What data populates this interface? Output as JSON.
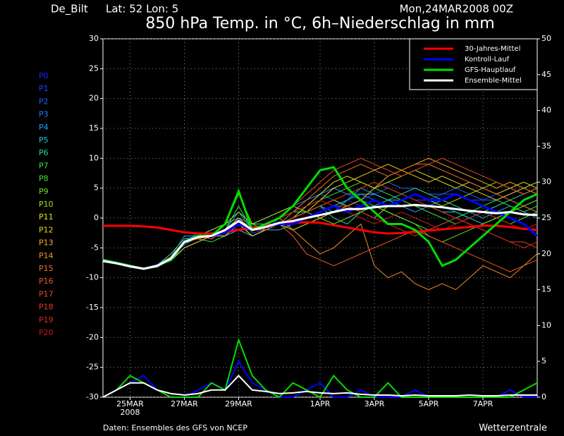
{
  "chart_data": {
    "type": "line",
    "title": "850 hPa Temp. in °C, 6h–Niederschlag in mm",
    "station": "De_Bilt",
    "location": "Lat: 52 Lon: 5",
    "run": "Mon,24MAR2008 00Z",
    "year_label": "2008",
    "source": "Daten: Ensembles des GFS von NCEP",
    "brand": "Wetterzentrale",
    "grid": true,
    "legend": "upper right",
    "x": [
      0,
      12,
      24,
      36,
      48,
      60,
      72,
      84,
      96,
      108,
      120,
      132,
      144,
      156,
      168,
      180,
      192,
      204,
      216,
      228,
      240,
      252,
      264,
      276,
      288,
      300,
      312,
      324,
      336,
      348,
      360,
      372,
      384
    ],
    "xlim": [
      0,
      384
    ],
    "xticks": [
      {
        "value": 24,
        "label": "25MAR"
      },
      {
        "value": 72,
        "label": "27MAR"
      },
      {
        "value": 120,
        "label": "29MAR"
      },
      {
        "value": 192,
        "label": "1APR"
      },
      {
        "value": 240,
        "label": "3APR"
      },
      {
        "value": 288,
        "label": "5APR"
      },
      {
        "value": 336,
        "label": "7APR"
      }
    ],
    "ylim": [
      -30,
      30
    ],
    "yticks": [
      -30,
      -25,
      -20,
      -15,
      -10,
      -5,
      0,
      5,
      10,
      15,
      20,
      25,
      30
    ],
    "y2lim": [
      0,
      50
    ],
    "y2ticks": [
      0,
      5,
      10,
      15,
      20,
      25,
      30,
      35,
      40,
      45,
      50
    ],
    "series": [
      {
        "name": "30-Jahres-Mittel",
        "color": "#ff0000",
        "values": [
          -1.3,
          -1.3,
          -1.3,
          -1.4,
          -1.6,
          -2,
          -2.4,
          -2.6,
          -2.6,
          -2.4,
          -2,
          -1.6,
          -1.3,
          -1,
          -0.8,
          -0.7,
          -0.8,
          -1.2,
          -1.6,
          -2,
          -2.4,
          -2.6,
          -2.5,
          -2.3,
          -2.1,
          -1.9,
          -1.7,
          -1.5,
          -1.3,
          -1.3,
          -1.5,
          -1.8,
          -2
        ]
      },
      {
        "name": "Kontroll-Lauf",
        "color": "#0000ff",
        "values": [
          -7,
          -7.5,
          -8,
          -8.5,
          -8,
          -7,
          -4,
          -3,
          -3,
          -2.5,
          -1,
          -2,
          -1.5,
          -1,
          -1,
          0,
          1,
          2,
          1,
          2,
          3,
          2,
          3,
          4,
          3,
          3,
          4,
          3,
          2,
          1,
          0,
          -1,
          -3
        ],
        "precip": [
          0,
          1,
          2,
          3,
          1,
          0,
          0,
          1,
          2,
          1,
          5,
          2,
          1,
          0,
          0,
          1,
          2,
          0,
          0,
          1,
          0,
          0,
          0,
          1,
          0,
          0,
          0,
          0,
          0,
          0,
          1,
          0,
          0
        ]
      },
      {
        "name": "GFS-Hauptlauf",
        "color": "#00dd00",
        "values": [
          -7,
          -7.5,
          -8,
          -8.5,
          -8,
          -7,
          -4,
          -3,
          -3,
          -1,
          4.5,
          -2,
          -1,
          0,
          2,
          5,
          8,
          8.5,
          5,
          3,
          1,
          -1,
          -1,
          -2,
          -4,
          -8,
          -7,
          -5,
          -3,
          -1,
          1,
          3,
          4
        ],
        "precip": [
          0,
          1,
          3,
          2,
          1,
          0,
          0,
          0,
          2,
          1,
          8,
          3,
          1,
          0,
          2,
          1,
          0,
          3,
          1,
          0,
          0,
          2,
          0,
          0,
          0,
          0,
          0,
          0,
          0,
          0,
          0,
          1,
          2
        ]
      },
      {
        "name": "Ensemble-Mittel",
        "color": "#ffffff",
        "values": [
          -7.2,
          -7.6,
          -8.1,
          -8.5,
          -8,
          -6.8,
          -4,
          -3.2,
          -3,
          -2,
          -0.5,
          -2,
          -1.5,
          -0.8,
          -0.5,
          0,
          0.5,
          1,
          1.5,
          1.5,
          1.8,
          2,
          2,
          2.2,
          2,
          1.8,
          1.5,
          1.2,
          1,
          0.8,
          1,
          0.6,
          0.5
        ],
        "precip": [
          0,
          1,
          2,
          2,
          1,
          0.5,
          0.3,
          0.5,
          1,
          1,
          3,
          1,
          0.8,
          0.5,
          0.6,
          0.8,
          0.6,
          0.5,
          0.6,
          0.4,
          0.3,
          0.3,
          0.2,
          0.3,
          0.2,
          0.2,
          0.2,
          0.3,
          0.2,
          0.2,
          0.3,
          0.3,
          0.3
        ]
      }
    ],
    "members": [
      {
        "name": "P0",
        "color": "#2020ff",
        "values": [
          -7,
          -7.5,
          -8,
          -8.5,
          -8,
          -7,
          -4,
          -3,
          -3,
          -2,
          -1,
          -2,
          -1.5,
          -1,
          -0.5,
          0,
          1,
          2,
          3,
          2,
          2,
          3,
          2,
          1,
          2,
          3,
          4,
          3,
          2,
          1,
          0,
          -1,
          -3
        ]
      },
      {
        "name": "P1",
        "color": "#2040ff",
        "values": [
          -7,
          -7.6,
          -8.2,
          -8.4,
          -7.8,
          -6,
          -3.5,
          -3,
          -3.5,
          -2,
          0,
          -2.5,
          -2,
          -1,
          0,
          2,
          4,
          5,
          4,
          3,
          4,
          5,
          4,
          3,
          3,
          4,
          4,
          3,
          3,
          4,
          5,
          4,
          5
        ]
      },
      {
        "name": "P2",
        "color": "#2060ff",
        "values": [
          -7,
          -7.4,
          -8,
          -8.6,
          -8.1,
          -6.5,
          -4.5,
          -3.2,
          -3,
          -1,
          -2,
          -3,
          -2,
          0,
          1,
          3,
          4,
          3,
          2,
          3,
          5,
          6,
          5,
          5,
          4,
          4,
          5,
          4,
          3,
          3,
          4,
          5,
          6
        ]
      },
      {
        "name": "P3",
        "color": "#2080ff",
        "values": [
          -7,
          -7.5,
          -7.9,
          -8.5,
          -8,
          -7,
          -4,
          -2.5,
          -3,
          -2,
          -1,
          -1,
          0,
          1,
          2,
          3,
          4,
          5,
          4,
          4,
          3,
          2,
          3,
          4,
          3,
          2,
          1,
          0,
          1,
          2,
          3,
          2,
          1
        ]
      },
      {
        "name": "P4",
        "color": "#20a0ff",
        "values": [
          -7,
          -7.6,
          -8.1,
          -8.5,
          -7.9,
          -6.5,
          -3,
          -3,
          -3.5,
          -2,
          1,
          -2,
          -2,
          -1,
          0,
          1,
          2,
          1,
          3,
          5,
          4,
          3,
          2,
          1,
          2,
          3,
          2,
          1,
          0,
          1,
          2,
          1,
          0
        ]
      },
      {
        "name": "P5",
        "color": "#20c8d0",
        "values": [
          -7,
          -7.5,
          -8,
          -8.4,
          -8,
          -7.2,
          -5,
          -4,
          -3,
          -3,
          -2,
          -3,
          -2,
          -2,
          -1,
          0,
          1,
          2,
          3,
          4,
          4,
          3,
          3,
          2,
          2,
          1,
          1,
          0,
          -1,
          0,
          1,
          2,
          3
        ]
      },
      {
        "name": "P6",
        "color": "#20d890",
        "values": [
          -7,
          -7.4,
          -8,
          -8.6,
          -8.2,
          -7,
          -4,
          -3,
          -2,
          -1,
          0,
          -1,
          -1,
          0,
          1,
          1,
          2,
          0,
          -1,
          1,
          2,
          3,
          4,
          5,
          4,
          3,
          2,
          1,
          1,
          2,
          3,
          4,
          5
        ]
      },
      {
        "name": "P7",
        "color": "#30e050",
        "values": [
          -7,
          -7.5,
          -8.1,
          -8.5,
          -8,
          -6,
          -3.5,
          -3.5,
          -4,
          -3,
          -1,
          -3,
          -2,
          -1,
          -2,
          -1,
          0,
          1,
          2,
          3,
          2,
          1,
          0,
          -1,
          -2,
          -1,
          0,
          1,
          2,
          3,
          2,
          1,
          2
        ]
      },
      {
        "name": "P8",
        "color": "#40e030",
        "values": [
          -7,
          -7.5,
          -8,
          -8.5,
          -8,
          -6.8,
          -4,
          -3,
          -3,
          -2,
          2,
          -2,
          -1,
          0,
          1,
          2,
          3,
          4,
          5,
          6,
          5,
          4,
          3,
          2,
          1,
          0,
          -1,
          0,
          1,
          0,
          -1,
          0,
          1
        ]
      },
      {
        "name": "P9",
        "color": "#70e020",
        "values": [
          -7,
          -7.6,
          -8.2,
          -8.5,
          -8.1,
          -7,
          -4.2,
          -3.4,
          -3,
          -1,
          4,
          -1,
          -2,
          -1,
          0,
          1,
          0,
          -1,
          0,
          1,
          2,
          1,
          0,
          -1,
          -3,
          -4,
          -3,
          -2,
          -1,
          0,
          1,
          2,
          3
        ]
      },
      {
        "name": "P10",
        "color": "#a8e020",
        "values": [
          -7,
          -7.5,
          -8,
          -8.4,
          -8,
          -6.5,
          -4,
          -3,
          -2,
          -1,
          1,
          -1,
          0,
          1,
          2,
          1,
          2,
          3,
          2,
          1,
          0,
          2,
          3,
          4,
          3,
          2,
          3,
          4,
          5,
          6,
          5,
          4,
          5
        ]
      },
      {
        "name": "P11",
        "color": "#e0e020",
        "values": [
          -7,
          -7.4,
          -7.9,
          -8.5,
          -7.9,
          -7,
          -4,
          -3.5,
          -3,
          -2,
          -0.5,
          -2,
          -2,
          -1,
          0,
          2,
          4,
          6,
          7,
          6,
          5,
          6,
          7,
          8,
          7,
          6,
          5,
          6,
          5,
          4,
          5,
          6,
          5
        ]
      },
      {
        "name": "P12",
        "color": "#f0d020",
        "values": [
          -7,
          -7.5,
          -8,
          -8.6,
          -8.2,
          -7,
          -5,
          -4,
          -3,
          -3,
          -1,
          -3,
          -2,
          -1,
          0,
          1,
          3,
          5,
          6,
          7,
          8,
          9,
          8,
          7,
          6,
          7,
          6,
          5,
          4,
          3,
          4,
          5,
          6
        ]
      },
      {
        "name": "P13",
        "color": "#f0b020",
        "values": [
          -7,
          -7.5,
          -8.1,
          -8.5,
          -8,
          -6.8,
          -4,
          -3,
          -3,
          -2,
          -1,
          -2,
          -1,
          -1,
          -2,
          -1,
          0,
          1,
          2,
          3,
          5,
          7,
          8,
          9,
          10,
          9,
          8,
          7,
          6,
          5,
          6,
          5,
          4
        ]
      },
      {
        "name": "P14",
        "color": "#f09020",
        "values": [
          -7,
          -7.6,
          -8.1,
          -8.4,
          -8,
          -7,
          -4,
          -3,
          -3,
          -2,
          0,
          -2,
          -1,
          0,
          -2,
          -4,
          -6,
          -5,
          -3,
          -1,
          -8,
          -10,
          -9,
          -11,
          -12,
          -11,
          -12,
          -10,
          -8,
          -9,
          -10,
          -8,
          -6
        ]
      },
      {
        "name": "P15",
        "color": "#f07020",
        "values": [
          -7,
          -7.5,
          -8,
          -8.5,
          -8,
          -7,
          -4,
          -3,
          -3,
          -2,
          -1,
          -2,
          -2,
          -1,
          1,
          3,
          5,
          7,
          8,
          9,
          8,
          7,
          8,
          9,
          9,
          8,
          7,
          6,
          5,
          4,
          3,
          2,
          1
        ]
      },
      {
        "name": "P16",
        "color": "#f05828",
        "values": [
          -7,
          -7.5,
          -8,
          -8.5,
          -8.1,
          -6.5,
          -4,
          -3,
          -3.5,
          -2,
          -1,
          -2,
          -1,
          -1,
          -3,
          -6,
          -7,
          -8,
          -7,
          -6,
          -5,
          -4,
          -3,
          -2,
          -3,
          -4,
          -5,
          -6,
          -7,
          -8,
          -9,
          -8,
          -7
        ]
      },
      {
        "name": "P17",
        "color": "#e84a28",
        "values": [
          -7,
          -7.4,
          -8,
          -8.5,
          -8,
          -7,
          -4,
          -3,
          -3,
          -2,
          -1,
          -2,
          -1,
          0,
          2,
          4,
          6,
          8,
          9,
          10,
          9,
          8,
          7,
          8,
          9,
          10,
          9,
          8,
          7,
          6,
          5,
          4,
          5
        ]
      },
      {
        "name": "P18",
        "color": "#e03c20",
        "values": [
          -7,
          -7.5,
          -8,
          -8.6,
          -8,
          -6.8,
          -4,
          -3,
          -3,
          -2,
          -2,
          -2,
          -2,
          -1,
          0,
          1,
          2,
          3,
          4,
          5,
          6,
          5,
          4,
          3,
          2,
          1,
          0,
          -1,
          -2,
          -3,
          -4,
          -4,
          -5
        ]
      },
      {
        "name": "P19",
        "color": "#d82820",
        "values": [
          -7,
          -7.5,
          -8.1,
          -8.5,
          -8,
          -7,
          -4,
          -3.5,
          -3,
          -2,
          -1,
          -2,
          -1.5,
          -1,
          -1,
          0,
          1,
          2,
          2,
          1,
          0,
          -1,
          -2,
          -3,
          -2,
          -1,
          0,
          -1,
          -2,
          -3,
          -4,
          -5,
          -4
        ]
      },
      {
        "name": "P20",
        "color": "#c81818",
        "values": [
          -7,
          -7.5,
          -8,
          -8.5,
          -8,
          -7,
          -4,
          -3,
          -3,
          -2,
          -1,
          -2,
          -1,
          0,
          1,
          2,
          3,
          2,
          1,
          0,
          -1,
          0,
          1,
          0,
          -1,
          -2,
          -1,
          0,
          1,
          0,
          -1,
          -2,
          -1
        ]
      }
    ]
  }
}
